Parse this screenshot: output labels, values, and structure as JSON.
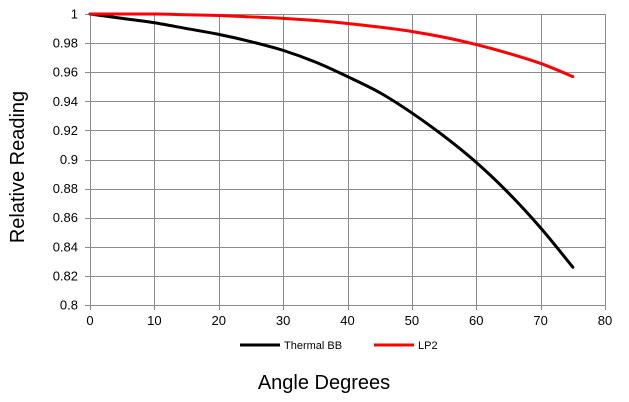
{
  "chart_data": {
    "type": "line",
    "title": "",
    "xlabel": "Angle Degrees",
    "ylabel": "Relative Reading",
    "xlim": [
      0,
      80
    ],
    "ylim": [
      0.8,
      1
    ],
    "x_ticks": [
      0,
      10,
      20,
      30,
      40,
      50,
      60,
      70,
      80
    ],
    "y_ticks": [
      0.8,
      0.82,
      0.84,
      0.86,
      0.88,
      0.9,
      0.92,
      0.94,
      0.96,
      0.98,
      1
    ],
    "x_tick_labels": [
      "0",
      "10",
      "20",
      "30",
      "40",
      "50",
      "60",
      "70",
      "80"
    ],
    "y_tick_labels": [
      "0.8",
      "0.82",
      "0.84",
      "0.86",
      "0.88",
      "0.9",
      "0.92",
      "0.94",
      "0.96",
      "0.98",
      "1"
    ],
    "grid": true,
    "legend_position": "bottom",
    "series": [
      {
        "name": "Thermal BB",
        "color": "#000000",
        "x": [
          0,
          5,
          10,
          15,
          20,
          25,
          30,
          35,
          40,
          45,
          50,
          55,
          60,
          65,
          70,
          75
        ],
        "y": [
          1.0,
          0.997,
          0.994,
          0.99,
          0.986,
          0.981,
          0.975,
          0.967,
          0.957,
          0.946,
          0.932,
          0.916,
          0.898,
          0.877,
          0.853,
          0.826
        ]
      },
      {
        "name": "LP2",
        "color": "#ff0000",
        "x": [
          0,
          5,
          10,
          15,
          20,
          25,
          30,
          35,
          40,
          45,
          50,
          55,
          60,
          65,
          70,
          75
        ],
        "y": [
          1.0,
          1.0,
          1.0,
          0.9995,
          0.999,
          0.998,
          0.997,
          0.9955,
          0.9935,
          0.991,
          0.988,
          0.984,
          0.979,
          0.973,
          0.966,
          0.957
        ]
      }
    ]
  }
}
